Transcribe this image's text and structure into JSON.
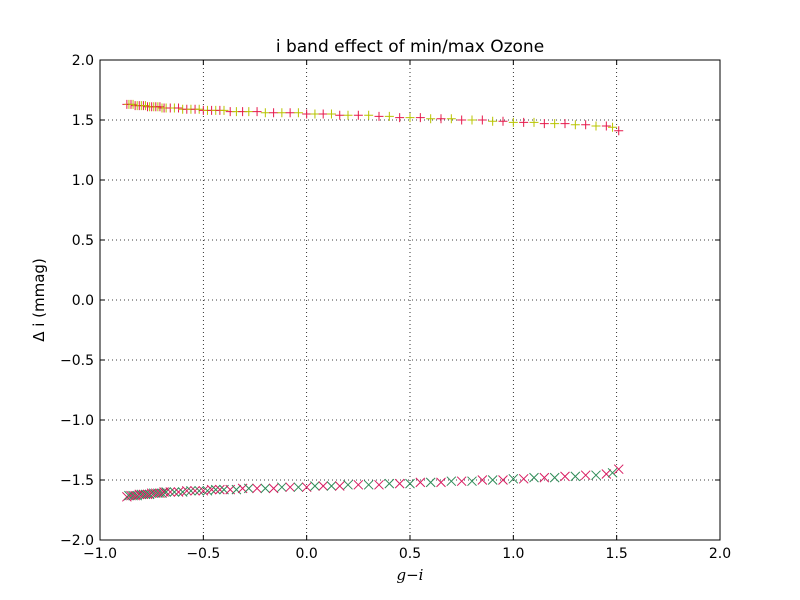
{
  "chart_data": {
    "type": "scatter",
    "title": "i band effect of min/max Ozone",
    "xlabel": "g−i",
    "ylabel": "Δ i (mmag)",
    "xlim": [
      -1.0,
      2.0
    ],
    "ylim": [
      -2.0,
      2.0
    ],
    "xticks": [
      -1.0,
      -0.5,
      0.0,
      0.5,
      1.0,
      1.5,
      2.0
    ],
    "yticks": [
      -2.0,
      -1.5,
      -1.0,
      -0.5,
      0.0,
      0.5,
      1.0,
      1.5,
      2.0
    ],
    "xtick_labels": [
      "−1.0",
      "−0.5",
      "0.0",
      "0.5",
      "1.0",
      "1.5",
      "2.0"
    ],
    "ytick_labels": [
      "−2.0",
      "−1.5",
      "−1.0",
      "−0.5",
      "0.0",
      "0.5",
      "1.0",
      "1.5",
      "2.0"
    ],
    "grid": true,
    "series": [
      {
        "marker": "plus",
        "colors": [
          "#e6194b",
          "#d81b60",
          "#ff7f0e",
          "#b8c400",
          "#2e8b57",
          "#8b0000"
        ],
        "x": [
          -0.87,
          -0.86,
          -0.85,
          -0.84,
          -0.83,
          -0.82,
          -0.81,
          -0.8,
          -0.79,
          -0.78,
          -0.77,
          -0.76,
          -0.75,
          -0.74,
          -0.73,
          -0.72,
          -0.71,
          -0.7,
          -0.69,
          -0.68,
          -0.66,
          -0.64,
          -0.62,
          -0.6,
          -0.58,
          -0.56,
          -0.54,
          -0.52,
          -0.5,
          -0.48,
          -0.46,
          -0.44,
          -0.42,
          -0.4,
          -0.37,
          -0.34,
          -0.31,
          -0.28,
          -0.24,
          -0.2,
          -0.16,
          -0.12,
          -0.08,
          -0.04,
          0.0,
          0.04,
          0.08,
          0.12,
          0.16,
          0.2,
          0.25,
          0.3,
          0.35,
          0.4,
          0.45,
          0.5,
          0.55,
          0.6,
          0.65,
          0.7,
          0.75,
          0.8,
          0.85,
          0.9,
          0.95,
          1.0,
          1.05,
          1.1,
          1.15,
          1.2,
          1.25,
          1.3,
          1.35,
          1.4,
          1.45,
          1.48,
          1.51
        ],
        "y": [
          1.63,
          1.63,
          1.63,
          1.63,
          1.62,
          1.62,
          1.62,
          1.62,
          1.62,
          1.62,
          1.61,
          1.61,
          1.61,
          1.61,
          1.61,
          1.61,
          1.61,
          1.6,
          1.6,
          1.6,
          1.6,
          1.6,
          1.6,
          1.59,
          1.59,
          1.59,
          1.59,
          1.59,
          1.58,
          1.58,
          1.58,
          1.58,
          1.58,
          1.58,
          1.57,
          1.57,
          1.57,
          1.57,
          1.57,
          1.56,
          1.56,
          1.56,
          1.56,
          1.56,
          1.55,
          1.55,
          1.55,
          1.55,
          1.54,
          1.54,
          1.54,
          1.54,
          1.53,
          1.53,
          1.52,
          1.52,
          1.52,
          1.51,
          1.51,
          1.51,
          1.5,
          1.5,
          1.5,
          1.49,
          1.49,
          1.48,
          1.48,
          1.48,
          1.47,
          1.47,
          1.47,
          1.46,
          1.46,
          1.45,
          1.45,
          1.44,
          1.41
        ]
      },
      {
        "marker": "x",
        "colors": [
          "#e6194b",
          "#d81b60",
          "#ff7f0e",
          "#b8c400",
          "#2e8b57",
          "#8b0000"
        ],
        "x": [
          -0.87,
          -0.86,
          -0.85,
          -0.84,
          -0.83,
          -0.82,
          -0.81,
          -0.8,
          -0.79,
          -0.78,
          -0.77,
          -0.76,
          -0.75,
          -0.74,
          -0.73,
          -0.72,
          -0.71,
          -0.7,
          -0.69,
          -0.68,
          -0.66,
          -0.64,
          -0.62,
          -0.6,
          -0.58,
          -0.56,
          -0.54,
          -0.52,
          -0.5,
          -0.48,
          -0.46,
          -0.44,
          -0.42,
          -0.4,
          -0.37,
          -0.34,
          -0.31,
          -0.28,
          -0.24,
          -0.2,
          -0.16,
          -0.12,
          -0.08,
          -0.04,
          0.0,
          0.04,
          0.08,
          0.12,
          0.16,
          0.2,
          0.25,
          0.3,
          0.35,
          0.4,
          0.45,
          0.5,
          0.55,
          0.6,
          0.65,
          0.7,
          0.75,
          0.8,
          0.85,
          0.9,
          0.95,
          1.0,
          1.05,
          1.1,
          1.15,
          1.2,
          1.25,
          1.3,
          1.35,
          1.4,
          1.45,
          1.48,
          1.51
        ],
        "y": [
          -1.64,
          -1.63,
          -1.63,
          -1.63,
          -1.63,
          -1.63,
          -1.62,
          -1.62,
          -1.62,
          -1.62,
          -1.62,
          -1.62,
          -1.61,
          -1.61,
          -1.61,
          -1.61,
          -1.61,
          -1.61,
          -1.6,
          -1.6,
          -1.6,
          -1.6,
          -1.6,
          -1.6,
          -1.59,
          -1.59,
          -1.59,
          -1.59,
          -1.59,
          -1.59,
          -1.58,
          -1.58,
          -1.58,
          -1.58,
          -1.58,
          -1.58,
          -1.57,
          -1.57,
          -1.57,
          -1.57,
          -1.57,
          -1.56,
          -1.56,
          -1.56,
          -1.56,
          -1.55,
          -1.55,
          -1.55,
          -1.55,
          -1.54,
          -1.54,
          -1.54,
          -1.54,
          -1.53,
          -1.53,
          -1.53,
          -1.52,
          -1.52,
          -1.52,
          -1.51,
          -1.51,
          -1.51,
          -1.5,
          -1.5,
          -1.5,
          -1.49,
          -1.49,
          -1.48,
          -1.48,
          -1.48,
          -1.47,
          -1.47,
          -1.46,
          -1.46,
          -1.45,
          -1.44,
          -1.41
        ]
      }
    ]
  }
}
